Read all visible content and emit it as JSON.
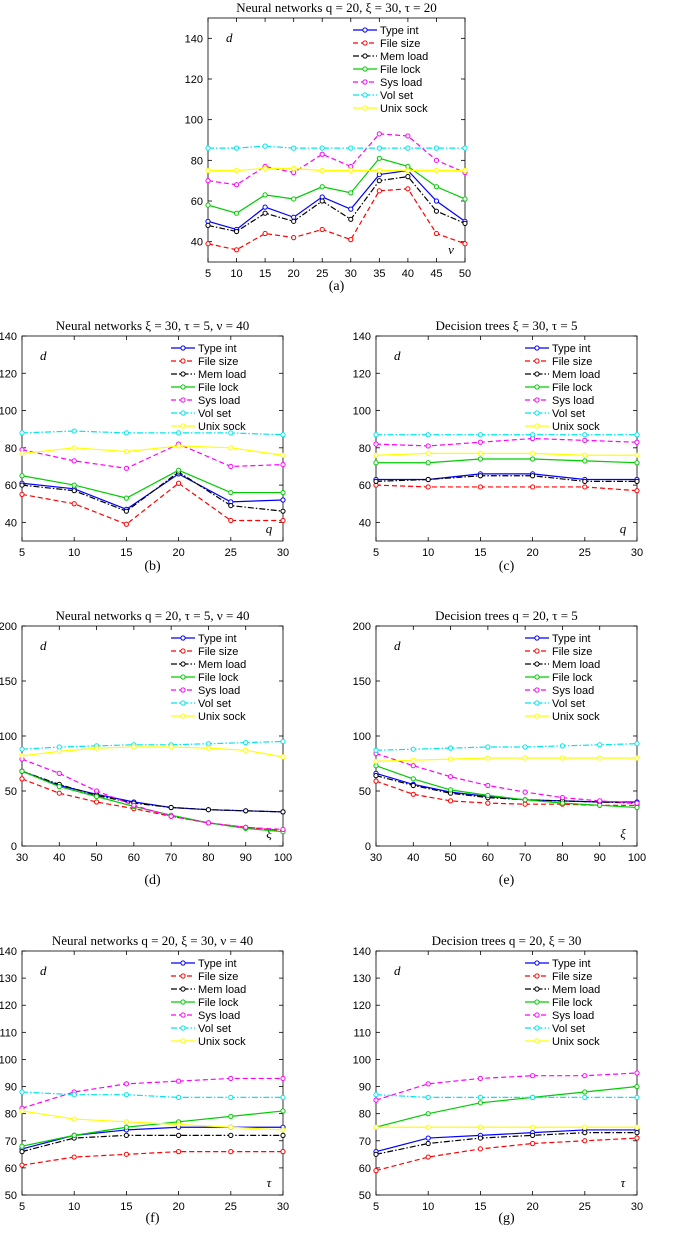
{
  "page": {
    "series_style": [
      {
        "name": "Type int",
        "color": "#0000ff",
        "dash": "solid"
      },
      {
        "name": "File size",
        "color": "#ff0000",
        "dash": "dashed"
      },
      {
        "name": "Mem load",
        "color": "#000000",
        "dash": "dashdot"
      },
      {
        "name": "File lock",
        "color": "#00cc00",
        "dash": "solid"
      },
      {
        "name": "Sys load",
        "color": "#ff00ff",
        "dash": "dashed"
      },
      {
        "name": "Vol set",
        "color": "#00e5ee",
        "dash": "dashdot"
      },
      {
        "name": "Unix sock",
        "color": "#ffff00",
        "dash": "solid"
      }
    ]
  },
  "chart_data": [
    {
      "id": "a",
      "type": "line",
      "title": "Neural networks q = 20, ξ = 30, τ = 20",
      "subtitle_label": "(a)",
      "ylabel": "d",
      "xlabel": "ν",
      "x": [
        5,
        10,
        15,
        20,
        25,
        30,
        35,
        40,
        45,
        50
      ],
      "xticks": [
        5,
        10,
        15,
        20,
        25,
        30,
        35,
        40,
        45,
        50
      ],
      "xlim": [
        5,
        50
      ],
      "ylim": [
        30,
        150
      ],
      "yticks": [
        40,
        60,
        80,
        100,
        120,
        140
      ],
      "grid": false,
      "legend_position": "top-right",
      "series": [
        {
          "name": "Type int",
          "values": [
            50,
            46,
            57,
            52,
            62,
            56,
            73,
            75,
            60,
            50
          ]
        },
        {
          "name": "File size",
          "values": [
            39,
            36,
            44,
            42,
            46,
            41,
            65,
            66,
            44,
            39
          ]
        },
        {
          "name": "Mem load",
          "values": [
            48,
            45,
            54,
            50,
            60,
            51,
            70,
            72,
            55,
            49
          ]
        },
        {
          "name": "File lock",
          "values": [
            58,
            54,
            63,
            61,
            67,
            64,
            81,
            77,
            67,
            61
          ]
        },
        {
          "name": "Sys load",
          "values": [
            70,
            68,
            77,
            74,
            83,
            77,
            93,
            92,
            80,
            74
          ]
        },
        {
          "name": "Vol set",
          "values": [
            86,
            86,
            87,
            86,
            86,
            86,
            86,
            86,
            86,
            86
          ]
        },
        {
          "name": "Unix sock",
          "values": [
            75,
            75,
            76,
            76,
            75,
            75,
            75,
            75,
            75,
            75
          ]
        }
      ]
    },
    {
      "id": "b",
      "type": "line",
      "title": "Neural networks ξ = 30, τ = 5, ν = 40",
      "subtitle_label": "(b)",
      "ylabel": "d",
      "xlabel": "q",
      "x": [
        5,
        10,
        15,
        20,
        25,
        30
      ],
      "xticks": [
        5,
        10,
        15,
        20,
        25,
        30
      ],
      "xlim": [
        5,
        30
      ],
      "ylim": [
        30,
        140
      ],
      "yticks": [
        40,
        60,
        80,
        100,
        120,
        140
      ],
      "grid": false,
      "legend_position": "top-right",
      "series": [
        {
          "name": "Type int",
          "values": [
            61,
            58,
            47,
            66,
            51,
            52
          ]
        },
        {
          "name": "File size",
          "values": [
            55,
            50,
            39,
            61,
            41,
            41
          ]
        },
        {
          "name": "Mem load",
          "values": [
            60,
            57,
            46,
            67,
            49,
            46
          ]
        },
        {
          "name": "File lock",
          "values": [
            65,
            60,
            53,
            68,
            56,
            56
          ]
        },
        {
          "name": "Sys load",
          "values": [
            79,
            73,
            69,
            82,
            70,
            71
          ]
        },
        {
          "name": "Vol set",
          "values": [
            88,
            89,
            88,
            88,
            88,
            87
          ]
        },
        {
          "name": "Unix sock",
          "values": [
            77,
            80,
            78,
            81,
            80,
            76
          ]
        }
      ]
    },
    {
      "id": "c",
      "type": "line",
      "title": "Decision trees ξ = 30, τ = 5",
      "subtitle_label": "(c)",
      "ylabel": "d",
      "xlabel": "q",
      "x": [
        5,
        10,
        15,
        20,
        25,
        30
      ],
      "xticks": [
        5,
        10,
        15,
        20,
        25,
        30
      ],
      "xlim": [
        5,
        30
      ],
      "ylim": [
        30,
        140
      ],
      "yticks": [
        40,
        60,
        80,
        100,
        120,
        140
      ],
      "grid": false,
      "legend_position": "top-right",
      "series": [
        {
          "name": "Type int",
          "values": [
            63,
            63,
            66,
            66,
            63,
            63
          ]
        },
        {
          "name": "File size",
          "values": [
            60,
            59,
            59,
            59,
            59,
            57
          ]
        },
        {
          "name": "Mem load",
          "values": [
            62,
            63,
            65,
            65,
            62,
            62
          ]
        },
        {
          "name": "File lock",
          "values": [
            72,
            72,
            74,
            74,
            73,
            72
          ]
        },
        {
          "name": "Sys load",
          "values": [
            82,
            81,
            83,
            85,
            84,
            83
          ]
        },
        {
          "name": "Vol set",
          "values": [
            87,
            87,
            87,
            87,
            87,
            87
          ]
        },
        {
          "name": "Unix sock",
          "values": [
            76,
            77,
            77,
            77,
            76,
            76
          ]
        }
      ]
    },
    {
      "id": "d",
      "type": "line",
      "title": "Neural networks q = 20, τ = 5, ν = 40",
      "subtitle_label": "(d)",
      "ylabel": "d",
      "xlabel": "ξ",
      "x": [
        30,
        40,
        50,
        60,
        70,
        80,
        90,
        100
      ],
      "xticks": [
        30,
        40,
        50,
        60,
        70,
        80,
        90,
        100
      ],
      "xlim": [
        30,
        100
      ],
      "ylim": [
        0,
        200
      ],
      "yticks": [
        0,
        50,
        100,
        150,
        200
      ],
      "grid": false,
      "legend_position": "top-right",
      "series": [
        {
          "name": "Type int",
          "values": [
            68,
            55,
            47,
            40,
            35,
            33,
            32,
            31
          ]
        },
        {
          "name": "File size",
          "values": [
            61,
            48,
            40,
            34,
            27,
            21,
            17,
            14
          ]
        },
        {
          "name": "Mem load",
          "values": [
            68,
            56,
            46,
            39,
            35,
            33,
            32,
            31
          ]
        },
        {
          "name": "File lock",
          "values": [
            68,
            54,
            45,
            36,
            28,
            21,
            16,
            13
          ]
        },
        {
          "name": "Sys load",
          "values": [
            79,
            66,
            50,
            37,
            27,
            21,
            17,
            15
          ]
        },
        {
          "name": "Vol set",
          "values": [
            88,
            90,
            91,
            92,
            92,
            93,
            94,
            95
          ]
        },
        {
          "name": "Unix sock",
          "values": [
            82,
            86,
            89,
            90,
            90,
            89,
            87,
            81
          ]
        }
      ]
    },
    {
      "id": "e",
      "type": "line",
      "title": "Decision trees q = 20, τ = 5",
      "subtitle_label": "(e)",
      "ylabel": "d",
      "xlabel": "ξ",
      "x": [
        30,
        40,
        50,
        60,
        70,
        80,
        90,
        100
      ],
      "xticks": [
        30,
        40,
        50,
        60,
        70,
        80,
        90,
        100
      ],
      "xlim": [
        30,
        100
      ],
      "ylim": [
        0,
        200
      ],
      "yticks": [
        0,
        50,
        100,
        150,
        200
      ],
      "grid": false,
      "legend_position": "top-right",
      "series": [
        {
          "name": "Type int",
          "values": [
            66,
            56,
            49,
            45,
            42,
            41,
            40,
            40
          ]
        },
        {
          "name": "File size",
          "values": [
            59,
            47,
            41,
            39,
            38,
            38,
            37,
            37
          ]
        },
        {
          "name": "Mem load",
          "values": [
            64,
            55,
            48,
            44,
            42,
            41,
            40,
            39
          ]
        },
        {
          "name": "File lock",
          "values": [
            73,
            61,
            51,
            46,
            42,
            39,
            37,
            35
          ]
        },
        {
          "name": "Sys load",
          "values": [
            84,
            73,
            63,
            55,
            49,
            44,
            41,
            39
          ]
        },
        {
          "name": "Vol set",
          "values": [
            87,
            88,
            89,
            90,
            90,
            91,
            92,
            93
          ]
        },
        {
          "name": "Unix sock",
          "values": [
            77,
            78,
            79,
            80,
            80,
            80,
            80,
            80
          ]
        }
      ]
    },
    {
      "id": "f",
      "type": "line",
      "title": "Neural networks q = 20, ξ = 30, ν = 40",
      "subtitle_label": "(f)",
      "ylabel": "d",
      "xlabel": "τ",
      "x": [
        5,
        10,
        15,
        20,
        25,
        30
      ],
      "xticks": [
        5,
        10,
        15,
        20,
        25,
        30
      ],
      "xlim": [
        5,
        30
      ],
      "ylim": [
        50,
        140
      ],
      "yticks": [
        50,
        60,
        70,
        80,
        90,
        100,
        110,
        120,
        130,
        140
      ],
      "grid": false,
      "legend_position": "top-right",
      "series": [
        {
          "name": "Type int",
          "values": [
            67,
            72,
            74,
            75,
            75,
            75
          ]
        },
        {
          "name": "File size",
          "values": [
            61,
            64,
            65,
            66,
            66,
            66
          ]
        },
        {
          "name": "Mem load",
          "values": [
            66,
            71,
            72,
            72,
            72,
            72
          ]
        },
        {
          "name": "File lock",
          "values": [
            68,
            72,
            75,
            77,
            79,
            81
          ]
        },
        {
          "name": "Sys load",
          "values": [
            82,
            88,
            91,
            92,
            93,
            93
          ]
        },
        {
          "name": "Vol set",
          "values": [
            88,
            87,
            87,
            86,
            86,
            86
          ]
        },
        {
          "name": "Unix sock",
          "values": [
            81,
            78,
            77,
            76,
            75,
            74
          ]
        }
      ]
    },
    {
      "id": "g",
      "type": "line",
      "title": "Decision trees q = 20, ξ = 30",
      "subtitle_label": "(g)",
      "ylabel": "d",
      "xlabel": "τ",
      "x": [
        5,
        10,
        15,
        20,
        25,
        30
      ],
      "xticks": [
        5,
        10,
        15,
        20,
        25,
        30
      ],
      "xlim": [
        5,
        30
      ],
      "ylim": [
        50,
        140
      ],
      "yticks": [
        50,
        60,
        70,
        80,
        90,
        100,
        110,
        120,
        130,
        140
      ],
      "grid": false,
      "legend_position": "top-right",
      "series": [
        {
          "name": "Type int",
          "values": [
            66,
            71,
            72,
            73,
            74,
            74
          ]
        },
        {
          "name": "File size",
          "values": [
            59,
            64,
            67,
            69,
            70,
            71
          ]
        },
        {
          "name": "Mem load",
          "values": [
            65,
            69,
            71,
            72,
            73,
            73
          ]
        },
        {
          "name": "File lock",
          "values": [
            75,
            80,
            84,
            86,
            88,
            90
          ]
        },
        {
          "name": "Sys load",
          "values": [
            85,
            91,
            93,
            94,
            94,
            95
          ]
        },
        {
          "name": "Vol set",
          "values": [
            87,
            86,
            86,
            86,
            86,
            86
          ]
        },
        {
          "name": "Unix sock",
          "values": [
            75,
            75,
            75,
            75,
            75,
            75
          ]
        }
      ]
    }
  ]
}
